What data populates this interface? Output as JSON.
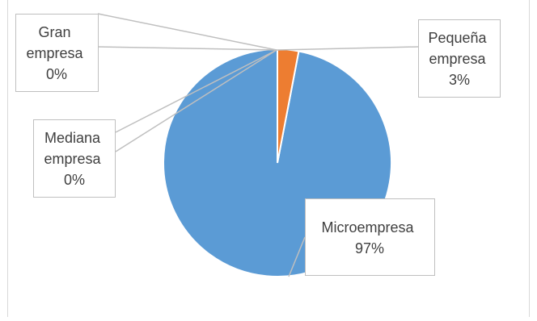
{
  "chart_data": {
    "type": "pie",
    "title": "",
    "slices": [
      {
        "label": "Microempresa",
        "value": 97,
        "percent_label": "97%",
        "color": "#5b9bd5"
      },
      {
        "label": "Pequeña empresa",
        "value": 3,
        "percent_label": "3%",
        "color": "#ed7d31"
      },
      {
        "label": "Mediana empresa",
        "value": 0,
        "percent_label": "0%",
        "color": "#a5a5a5"
      },
      {
        "label": "Gran empresa",
        "value": 0,
        "percent_label": "0%",
        "color": "#ffc000"
      }
    ],
    "legend": "none",
    "data_labels": "callouts"
  }
}
